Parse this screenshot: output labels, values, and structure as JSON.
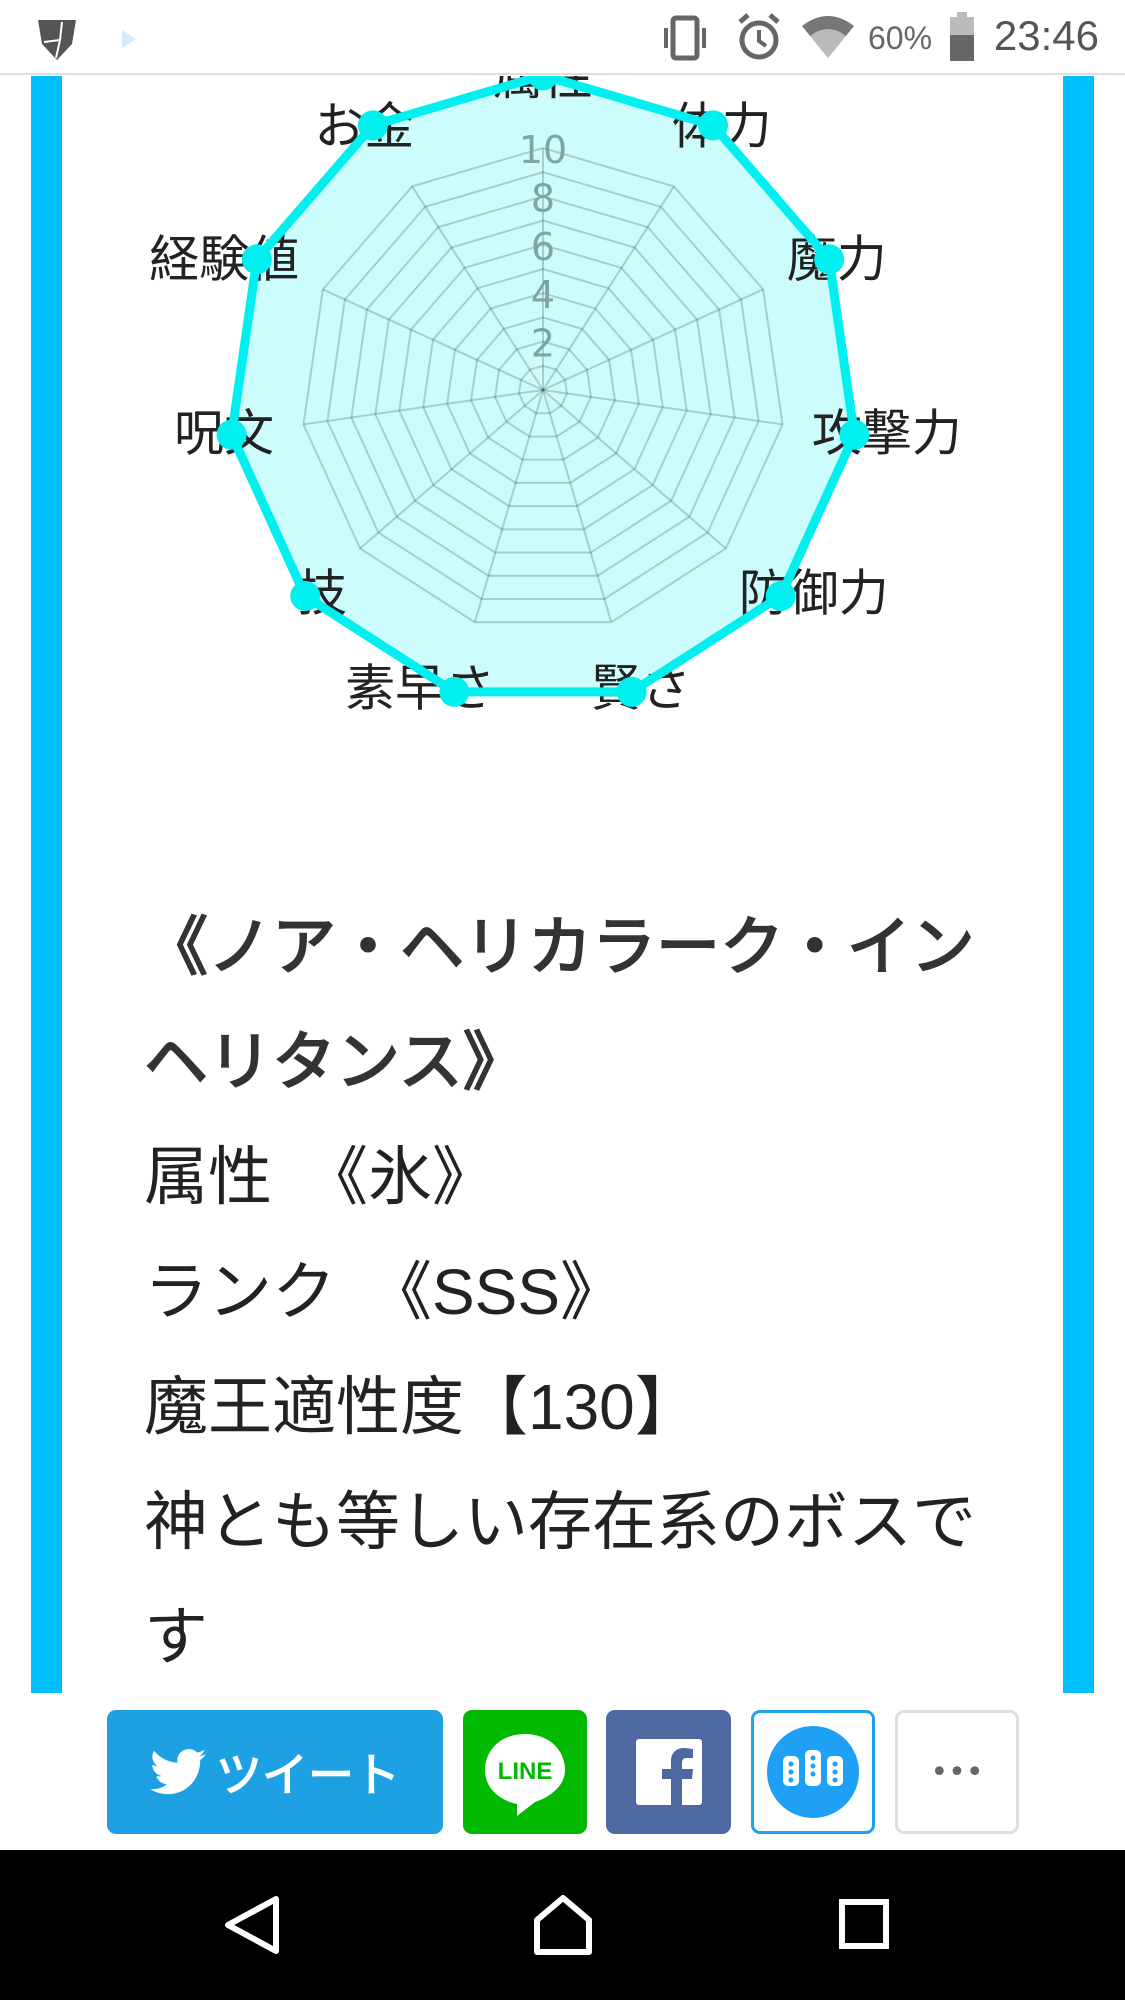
{
  "status_bar": {
    "battery_percent": "60%",
    "time": "23:46",
    "battery_level": 0.6,
    "icons": [
      "shield-app-icon",
      "play-notification-icon",
      "vibrate-icon",
      "alarm-icon",
      "wifi-icon",
      "battery-icon"
    ]
  },
  "colors": {
    "frame": "#00bfff",
    "series": "#00f0f0",
    "fill": "#ccfcfc",
    "twitter": "#1da1e2",
    "line": "#00b900",
    "facebook": "#4e69a2",
    "hatena": "#1ea0f5"
  },
  "chart_data": {
    "type": "radar",
    "categories": [
      "属性",
      "体力",
      "魔力",
      "攻撃力",
      "防御力",
      "賢さ",
      "素早さ",
      "技",
      "呪文",
      "経験値",
      "お金"
    ],
    "series": [
      {
        "values": [
          13,
          13,
          13,
          13,
          13,
          13,
          13,
          13,
          13,
          13,
          13
        ]
      }
    ],
    "ticks": [
      "2",
      "4",
      "6",
      "8",
      "10"
    ],
    "rlim": [
      0,
      10
    ],
    "grid": true
  },
  "article": {
    "lines": [
      {
        "text": "《ノア・ヘリカラーク・インヘリタンス》",
        "bold": true
      },
      {
        "text": "属性　《氷》"
      },
      {
        "text": "ランク　《SSS》"
      },
      {
        "text": "魔王適性度【130】"
      },
      {
        "text": "神とも等しい存在系のボスです"
      }
    ]
  },
  "share": {
    "tweet_label": "ツイート",
    "line_label": "LINE",
    "more_label": "•••"
  }
}
